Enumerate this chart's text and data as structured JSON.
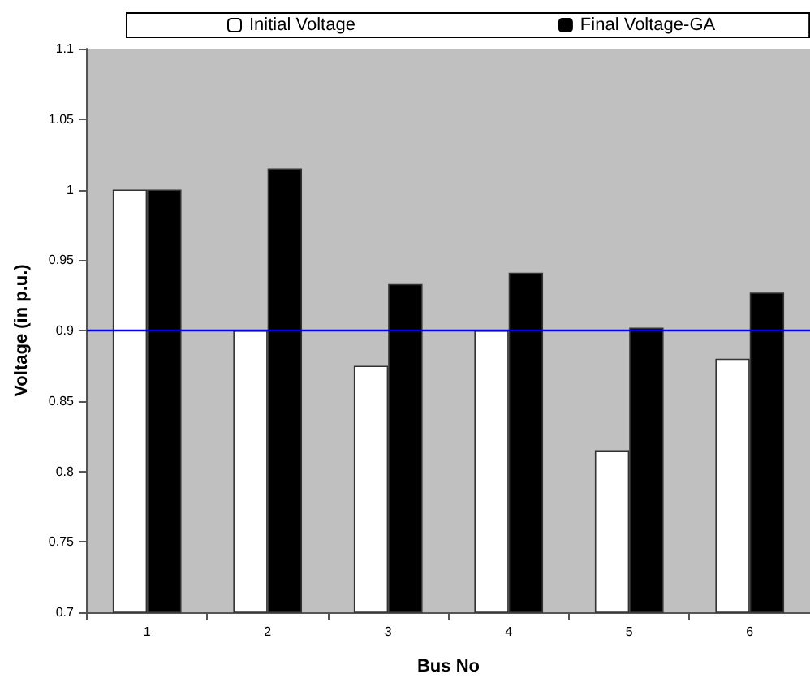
{
  "chart_data": {
    "type": "bar",
    "xlabel": "Bus No",
    "ylabel": "Voltage (in p.u.)",
    "categories": [
      "1",
      "2",
      "3",
      "4",
      "5",
      "6"
    ],
    "series": [
      {
        "name": "Initial Voltage",
        "color": "#ffffff",
        "values": [
          1.0,
          0.9,
          0.875,
          0.9,
          0.815,
          0.88
        ]
      },
      {
        "name": "Final Voltage-GA",
        "color": "#000000",
        "values": [
          1.0,
          1.015,
          0.933,
          0.941,
          0.902,
          0.927
        ]
      }
    ],
    "ylim": [
      0.7,
      1.1
    ],
    "yticks": [
      0.7,
      0.75,
      0.8,
      0.85,
      0.9,
      0.95,
      1,
      1.05,
      1.1
    ],
    "ref_lines": [
      {
        "axis": "y",
        "value": 0.9,
        "color": "#0000ff"
      }
    ],
    "grid": false,
    "legend": "top"
  }
}
